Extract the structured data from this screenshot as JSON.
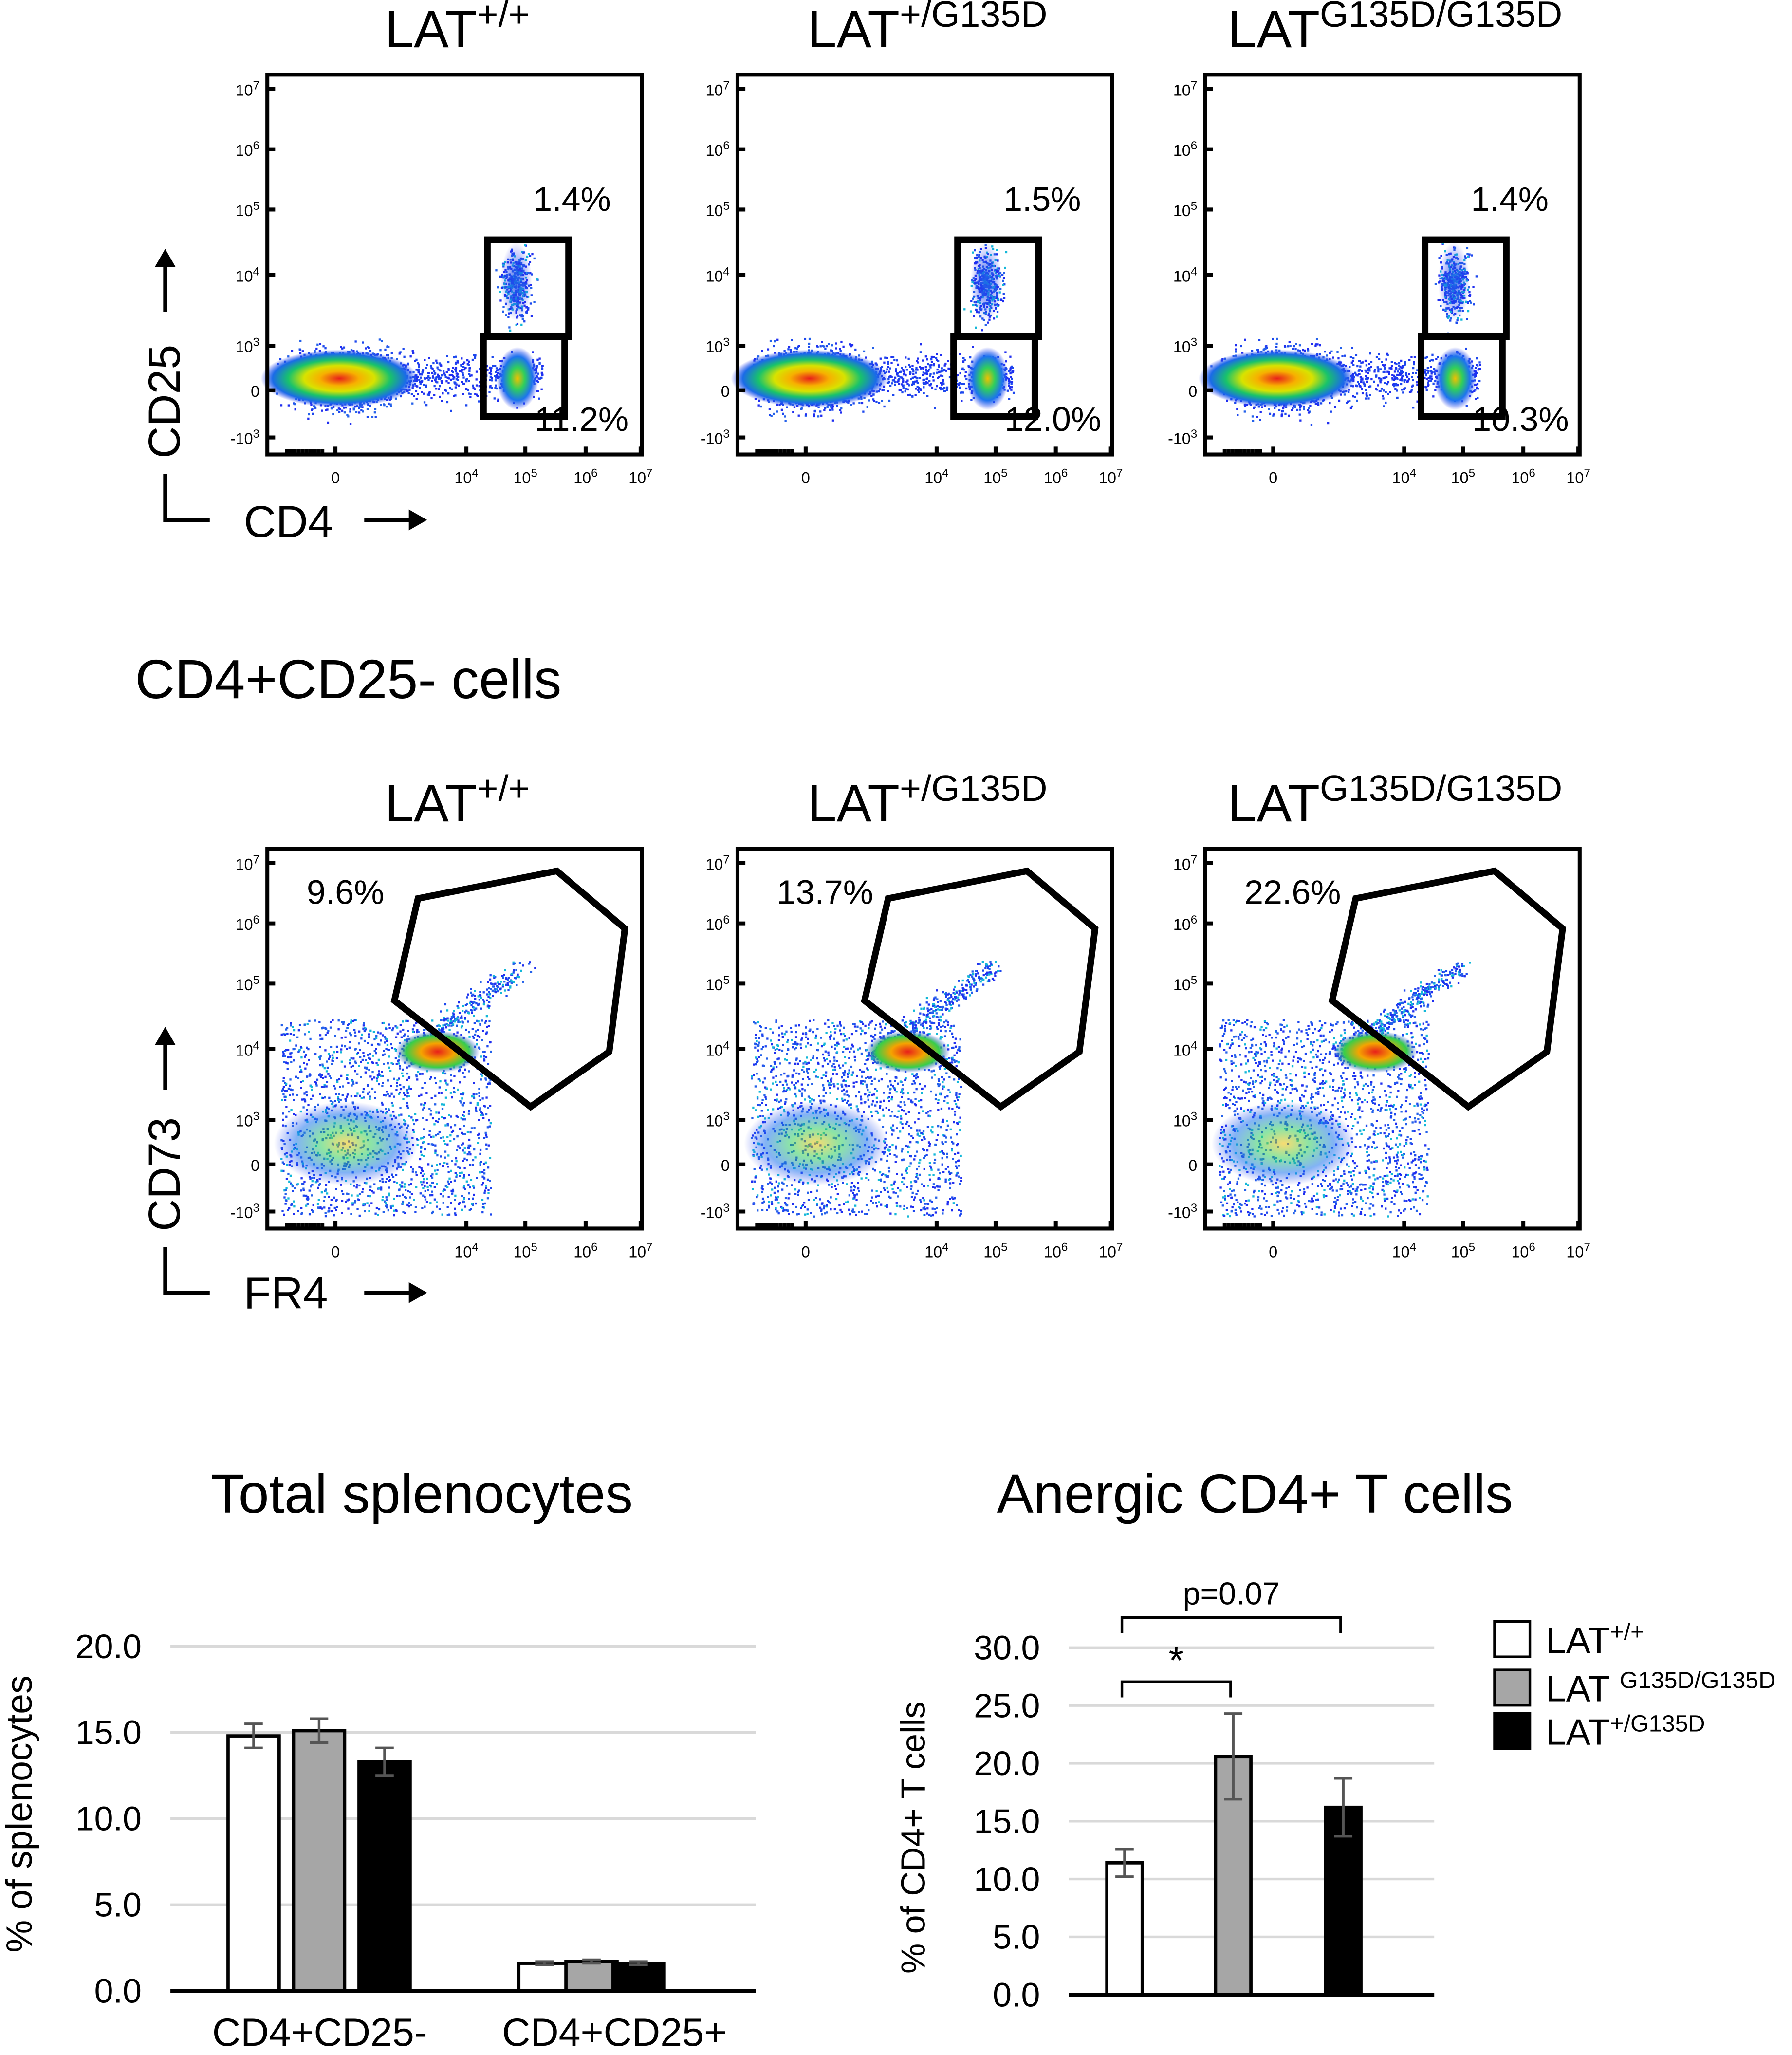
{
  "flow_top": {
    "x_axis_label": "CD4",
    "y_axis_label": "CD25",
    "panels": [
      {
        "base": "LAT",
        "sup": "+/+",
        "gate_upper": "1.4%",
        "gate_lower": "11.2%"
      },
      {
        "base": "LAT",
        "sup": "+/G135D",
        "gate_upper": "1.5%",
        "gate_lower": "12.0%"
      },
      {
        "base": "LAT",
        "sup": "G135D/G135D",
        "gate_upper": "1.4%",
        "gate_lower": "10.3%"
      }
    ],
    "x_ticks": [
      "0",
      "10",
      "10",
      "10",
      "10"
    ],
    "x_tick_exps": [
      "",
      "4",
      "5",
      "6",
      "7"
    ],
    "y_ticks": [
      "10",
      "10",
      "10",
      "10",
      "10",
      "0",
      "-10"
    ],
    "y_tick_exps": [
      "7",
      "6",
      "5",
      "4",
      "3",
      "",
      "3"
    ]
  },
  "section_title": "CD4+CD25- cells",
  "flow_bottom": {
    "x_axis_label": "FR4",
    "y_axis_label": "CD73",
    "panels": [
      {
        "base": "LAT",
        "sup": "+/+",
        "gate_value": "9.6%"
      },
      {
        "base": "LAT",
        "sup": "+/G135D",
        "gate_value": "13.7%"
      },
      {
        "base": "LAT",
        "sup": "G135D/G135D",
        "gate_value": "22.6%"
      }
    ]
  },
  "chart_data": [
    {
      "type": "bar",
      "title": "Total splenocytes",
      "ylabel": "% of splenocytes",
      "xlabel": "",
      "ylim": [
        0,
        20
      ],
      "yticks": [
        "0.0",
        "5.0",
        "10.0",
        "15.0",
        "20.0"
      ],
      "categories": [
        "CD4+CD25-",
        "CD4+CD25+"
      ],
      "series": [
        {
          "name": "LAT+/+",
          "color": "#ffffff",
          "values": [
            14.8,
            1.6
          ],
          "errors": [
            0.7,
            0.1
          ]
        },
        {
          "name": "LAT G135D/G135D",
          "color": "#a6a6a6",
          "values": [
            15.1,
            1.7
          ],
          "errors": [
            0.7,
            0.1
          ]
        },
        {
          "name": "LAT+/G135D",
          "color": "#000000",
          "values": [
            13.3,
            1.6
          ],
          "errors": [
            0.8,
            0.1
          ]
        }
      ]
    },
    {
      "type": "bar",
      "title": "Anergic CD4+ T cells",
      "ylabel": "% of CD4+ T cells",
      "xlabel": "",
      "ylim": [
        0,
        30
      ],
      "yticks": [
        "0.0",
        "5.0",
        "10.0",
        "15.0",
        "20.0",
        "25.0",
        "30.0"
      ],
      "categories": [
        "LAT+/+",
        "LAT G135D/G135D",
        "LAT+/G135D"
      ],
      "values": [
        11.4,
        20.6,
        16.2
      ],
      "errors": [
        1.2,
        3.7,
        2.5
      ],
      "colors": [
        "#ffffff",
        "#a6a6a6",
        "#000000"
      ],
      "annotations": [
        {
          "text": "*",
          "from": "LAT+/+",
          "to": "LAT G135D/G135D"
        },
        {
          "text": "p=0.07",
          "from": "LAT+/+",
          "to": "LAT+/G135D"
        }
      ]
    }
  ],
  "legend": [
    {
      "base": "LAT",
      "sup": "+/+",
      "color": "#ffffff"
    },
    {
      "base": "LAT ",
      "sup": "G135D/G135D",
      "color": "#a6a6a6"
    },
    {
      "base": "LAT",
      "sup": "+/G135D",
      "color": "#000000"
    }
  ]
}
